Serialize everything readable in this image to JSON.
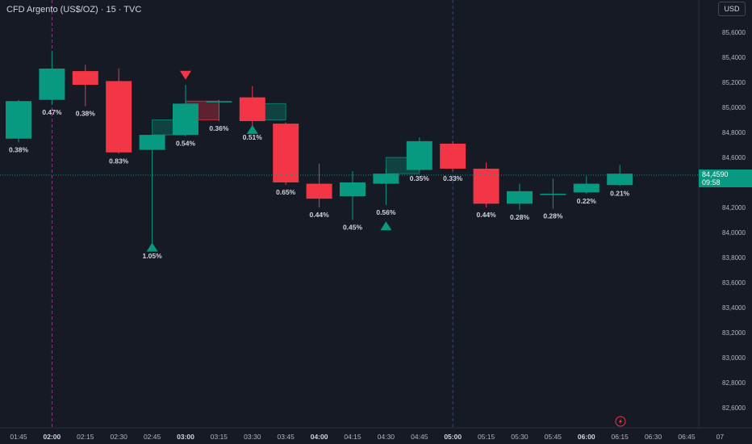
{
  "header": {
    "title": "CFD Argento (US$/OZ) · 15 · TVC"
  },
  "toolbar": {
    "currency_label": "USD"
  },
  "last_price": {
    "value": "84,4590",
    "countdown": "09:58",
    "value_num": 84.459
  },
  "colors": {
    "up": "#089981",
    "down": "#f23645",
    "background": "#161a25",
    "session_line": "#8a3a8a",
    "grid": "#1f2330"
  },
  "time_axis_icon": "lightning-icon",
  "chart_data": {
    "type": "candlestick",
    "title": "CFD Argento (US$/OZ) · 15 · TVC",
    "y_ticks": [
      "85,6000",
      "85,4000",
      "85,2000",
      "85,0000",
      "84,8000",
      "84,6000",
      "84,4000",
      "84,2000",
      "84,0000",
      "83,8000",
      "83,6000",
      "83,4000",
      "83,2000",
      "83,0000",
      "82,8000",
      "82,6000"
    ],
    "x_ticks": [
      "01:45",
      "02:00",
      "02:15",
      "02:30",
      "02:45",
      "03:00",
      "03:15",
      "03:30",
      "03:45",
      "04:00",
      "04:15",
      "04:30",
      "04:45",
      "05:00",
      "05:15",
      "05:30",
      "05:45",
      "06:00",
      "06:15",
      "06:30",
      "06:45",
      "07"
    ],
    "ylim": [
      82.52,
      85.74
    ],
    "grid": false,
    "session_markers": [
      "02:00"
    ],
    "day_separators": [
      "05:00"
    ],
    "candles": [
      {
        "time": "01:45",
        "open": 84.75,
        "high": 85.06,
        "low": 84.72,
        "close": 85.05,
        "label": "0.38%"
      },
      {
        "time": "02:00",
        "open": 85.06,
        "high": 85.45,
        "low": 85.02,
        "close": 85.31,
        "label": "0.47%"
      },
      {
        "time": "02:15",
        "open": 85.29,
        "high": 85.34,
        "low": 85.01,
        "close": 85.18,
        "label": "0.38%"
      },
      {
        "time": "02:30",
        "open": 85.21,
        "high": 85.31,
        "low": 84.63,
        "close": 84.64,
        "label": "0.83%"
      },
      {
        "time": "02:45",
        "open": 84.66,
        "high": 84.78,
        "low": 83.87,
        "close": 84.78,
        "label": "1.05%"
      },
      {
        "time": "03:00",
        "open": 84.78,
        "high": 85.18,
        "low": 84.77,
        "close": 85.03,
        "label": "0.54%"
      },
      {
        "time": "03:15",
        "open": 85.04,
        "high": 85.06,
        "low": 84.89,
        "close": 85.05,
        "label": "0.36%"
      },
      {
        "time": "03:30",
        "open": 85.08,
        "high": 85.17,
        "low": 84.82,
        "close": 84.89,
        "label": "0.51%"
      },
      {
        "time": "03:45",
        "open": 84.87,
        "high": 84.88,
        "low": 84.38,
        "close": 84.4,
        "label": "0.65%"
      },
      {
        "time": "04:00",
        "open": 84.39,
        "high": 84.55,
        "low": 84.2,
        "close": 84.27,
        "label": "0.44%"
      },
      {
        "time": "04:15",
        "open": 84.29,
        "high": 84.49,
        "low": 84.1,
        "close": 84.4,
        "label": "0.45%"
      },
      {
        "time": "04:30",
        "open": 84.39,
        "high": 84.51,
        "low": 84.22,
        "close": 84.47,
        "label": "0.56%"
      },
      {
        "time": "04:45",
        "open": 84.5,
        "high": 84.76,
        "low": 84.49,
        "close": 84.73,
        "label": "0.35%"
      },
      {
        "time": "05:00",
        "open": 84.71,
        "high": 84.73,
        "low": 84.49,
        "close": 84.51,
        "label": "0.33%"
      },
      {
        "time": "05:15",
        "open": 84.51,
        "high": 84.56,
        "low": 84.2,
        "close": 84.23,
        "label": "0.44%"
      },
      {
        "time": "05:30",
        "open": 84.23,
        "high": 84.39,
        "low": 84.18,
        "close": 84.33,
        "label": "0.28%"
      },
      {
        "time": "05:45",
        "open": 84.3,
        "high": 84.43,
        "low": 84.19,
        "close": 84.31,
        "label": "0.28%"
      },
      {
        "time": "06:00",
        "open": 84.32,
        "high": 84.45,
        "low": 84.31,
        "close": 84.39,
        "label": "0.22%"
      },
      {
        "time": "06:15",
        "open": 84.38,
        "high": 84.54,
        "low": 84.37,
        "close": 84.47,
        "label": "0.21%"
      }
    ],
    "zones": [
      {
        "from": "02:45",
        "to": "03:00",
        "top": 84.9,
        "bottom": 84.78,
        "color": "up"
      },
      {
        "from": "03:00",
        "to": "03:15",
        "top": 85.05,
        "bottom": 84.9,
        "color": "down"
      },
      {
        "from": "03:30",
        "to": "03:45",
        "top": 85.03,
        "bottom": 84.9,
        "color": "up"
      },
      {
        "from": "04:30",
        "to": "04:45",
        "top": 84.6,
        "bottom": 84.47,
        "color": "up"
      }
    ],
    "markers": [
      {
        "time": "02:45",
        "price": 83.88,
        "direction": "up",
        "color": "up"
      },
      {
        "time": "03:00",
        "price": 85.26,
        "direction": "down",
        "color": "down"
      },
      {
        "time": "03:30",
        "price": 84.82,
        "direction": "up",
        "color": "up"
      },
      {
        "time": "04:30",
        "price": 84.05,
        "direction": "up",
        "color": "up"
      }
    ]
  }
}
